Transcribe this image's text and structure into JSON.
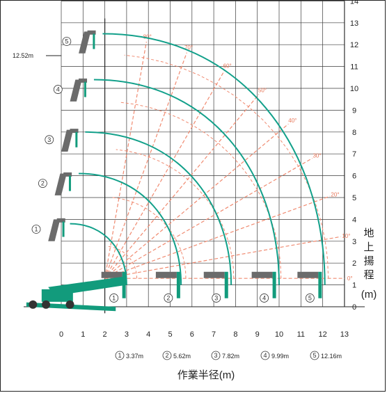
{
  "diagram": {
    "x_ticks": [
      "0",
      "1",
      "2",
      "3",
      "4",
      "5",
      "6",
      "7",
      "8",
      "9",
      "10",
      "11",
      "12",
      "13"
    ],
    "y_ticks": [
      "0",
      "1",
      "2",
      "3",
      "4",
      "5",
      "6",
      "7",
      "8",
      "9",
      "10",
      "11",
      "12",
      "13",
      "14"
    ],
    "y_axis_title": "地上揚程",
    "y_axis_unit": "(m)",
    "x_axis_title": "作業半径(m)",
    "max_height_label": "12.52m",
    "boom_stages": [
      {
        "mark": "1",
        "length": "3.37m"
      },
      {
        "mark": "2",
        "length": "5.62m"
      },
      {
        "mark": "3",
        "length": "7.82m"
      },
      {
        "mark": "4",
        "length": "9.99m"
      },
      {
        "mark": "5",
        "length": "12.16m"
      }
    ],
    "angle_labels": [
      "80°",
      "70°",
      "60°",
      "50°",
      "40°",
      "30°",
      "20°",
      "10°",
      "0°"
    ],
    "colors": {
      "grid": "#3a3a3a",
      "reach_curve": "#12a08a",
      "angle_lines": "#f08a70",
      "boom_gray": "#6b6b6b",
      "crane_green": "#129b7c"
    }
  }
}
